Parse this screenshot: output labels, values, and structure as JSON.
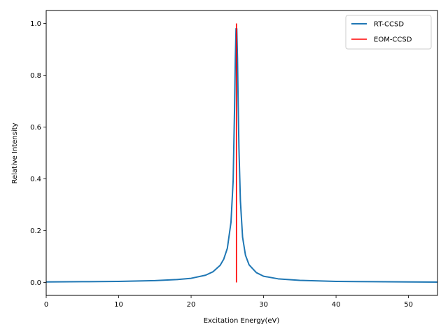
{
  "chart_data": {
    "type": "line",
    "xlabel": "Excitation Energy(eV)",
    "ylabel": "Relative Intensity",
    "xlim": [
      0,
      54
    ],
    "ylim": [
      -0.05,
      1.05
    ],
    "xticks": [
      0,
      10,
      20,
      30,
      40,
      50
    ],
    "xtick_labels": [
      "0",
      "10",
      "20",
      "30",
      "40",
      "50"
    ],
    "yticks": [
      0.0,
      0.2,
      0.4,
      0.6,
      0.8,
      1.0
    ],
    "ytick_labels": [
      "0.0",
      "0.2",
      "0.4",
      "0.6",
      "0.8",
      "1.0"
    ],
    "grid": false,
    "legend_position": "top-right",
    "series": [
      {
        "name": "RT-CCSD",
        "style": "line",
        "color": "#1f77b4",
        "x": [
          0,
          5,
          10,
          15,
          18,
          20,
          22,
          23,
          24,
          24.5,
          25,
          25.5,
          25.8,
          26.0,
          26.1,
          26.2,
          26.3,
          26.4,
          26.5,
          26.6,
          26.8,
          27.1,
          27.5,
          28,
          29,
          30,
          32,
          35,
          40,
          45,
          50,
          54
        ],
        "y": [
          0.002,
          0.003,
          0.004,
          0.007,
          0.011,
          0.016,
          0.028,
          0.041,
          0.066,
          0.09,
          0.132,
          0.232,
          0.393,
          0.68,
          0.864,
          0.98,
          0.98,
          0.864,
          0.68,
          0.519,
          0.315,
          0.175,
          0.105,
          0.068,
          0.038,
          0.024,
          0.014,
          0.008,
          0.004,
          0.003,
          0.002,
          0.0015
        ]
      },
      {
        "name": "EOM-CCSD",
        "style": "stick",
        "color": "#ff0000",
        "x": [
          26.25
        ],
        "y": [
          1.0
        ]
      }
    ]
  }
}
